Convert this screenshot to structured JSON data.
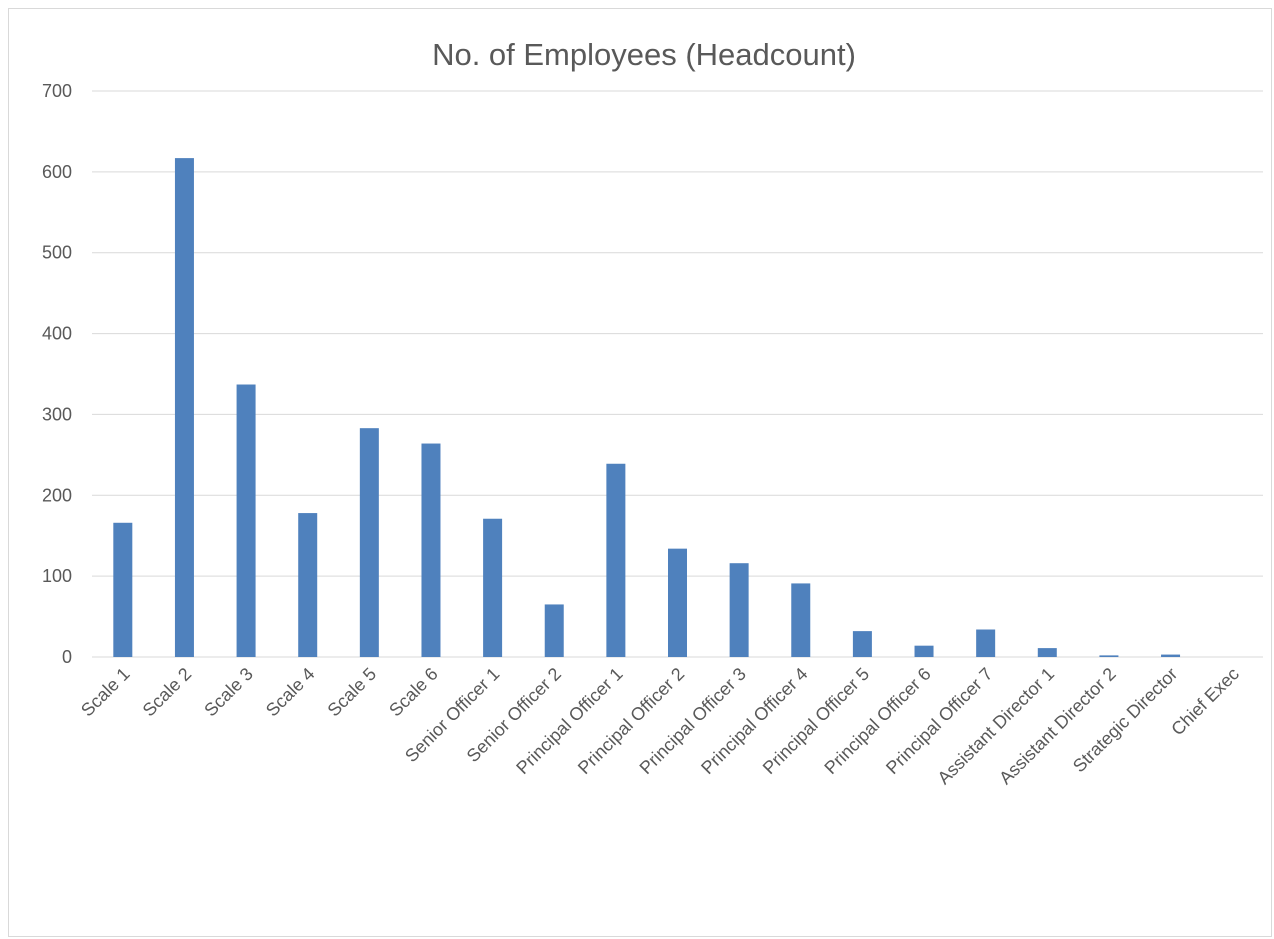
{
  "chart_data": {
    "type": "bar",
    "title": "No. of Employees (Headcount)",
    "xlabel": "",
    "ylabel": "",
    "ylim": [
      0,
      700
    ],
    "y_ticks": [
      0,
      100,
      200,
      300,
      400,
      500,
      600,
      700
    ],
    "grid": true,
    "legend": "none",
    "bar_color": "#4f81bd",
    "grid_color": "#d9d9d9",
    "categories": [
      "Scale 1",
      "Scale 2",
      "Scale 3",
      "Scale 4",
      "Scale 5",
      "Scale 6",
      "Senior Officer 1",
      "Senior Officer 2",
      "Principal Officer 1",
      "Principal Officer 2",
      "Principal Officer 3",
      "Principal Officer 4",
      "Principal Officer 5",
      "Principal Officer 6",
      "Principal Officer 7",
      "Assistant Director 1",
      "Assistant Director 2",
      "Strategic Director",
      "Chief Exec"
    ],
    "values": [
      166,
      617,
      337,
      178,
      283,
      264,
      171,
      65,
      239,
      134,
      116,
      91,
      32,
      14,
      34,
      11,
      2,
      3,
      0
    ]
  }
}
